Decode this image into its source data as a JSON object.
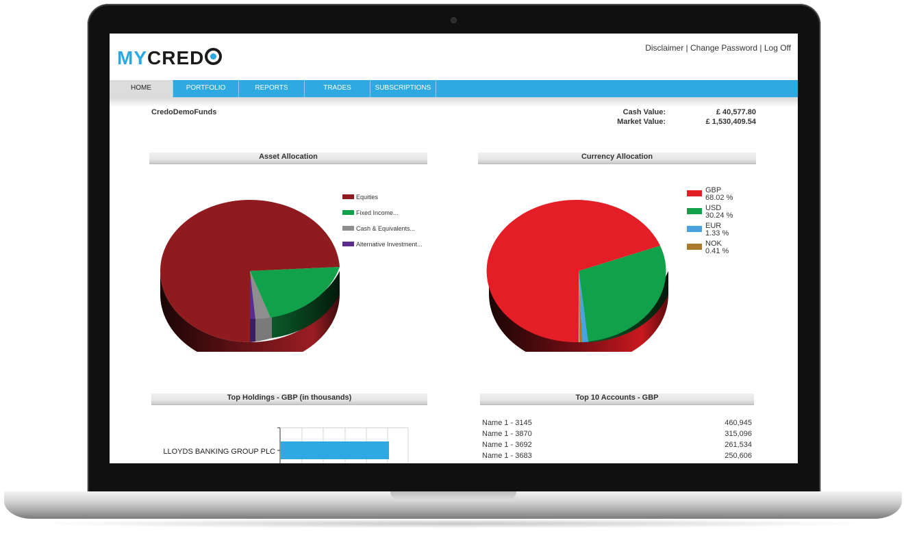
{
  "header": {
    "logo": {
      "part1": "MY",
      "part2": "CRED"
    },
    "links": "Disclaimer | Change Password | Log Off"
  },
  "nav": {
    "tabs": [
      {
        "label": "HOME",
        "active": true
      },
      {
        "label": "PORTFOLIO",
        "active": false
      },
      {
        "label": "REPORTS",
        "active": false
      },
      {
        "label": "TRADES",
        "active": false
      },
      {
        "label": "SUBSCRIPTIONS",
        "active": false
      }
    ]
  },
  "summary": {
    "account_name": "CredoDemoFunds",
    "cash_label": "Cash Value:",
    "cash_value": "£ 40,577.80",
    "market_label": "Market Value:",
    "market_value": "£ 1,530,409.54"
  },
  "asset_allocation": {
    "title": "Asset Allocation",
    "legend": [
      {
        "label": "Equities",
        "color": "#8f1b1f"
      },
      {
        "label": "Fixed Income...",
        "color": "#12a14b"
      },
      {
        "label": "Cash & Equivalents...",
        "color": "#8e8e8e"
      },
      {
        "label": "Alternative Investment...",
        "color": "#5b2c8a"
      }
    ]
  },
  "currency_allocation": {
    "title": "Currency Allocation",
    "legend": [
      {
        "code": "GBP",
        "pct": "68.02 %",
        "color": "#e31e26"
      },
      {
        "code": "USD",
        "pct": "30.24 %",
        "color": "#12a14b"
      },
      {
        "code": "EUR",
        "pct": "1.33 %",
        "color": "#4aa3dd"
      },
      {
        "code": "NOK",
        "pct": "0.41 %",
        "color": "#a97a2b"
      }
    ]
  },
  "top_holdings": {
    "title": "Top Holdings - GBP (in thousands)",
    "items": [
      {
        "label": "LLOYDS BANKING GROUP PLC",
        "color": "#2ea9e1"
      }
    ]
  },
  "top_accounts": {
    "title": "Top 10 Accounts - GBP",
    "rows": [
      {
        "name": "Name 1 - 3145",
        "value": "460,945"
      },
      {
        "name": "Name 1 - 3870",
        "value": "315,096"
      },
      {
        "name": "Name 1 - 3692",
        "value": "261,534"
      },
      {
        "name": "Name 1 - 3683",
        "value": "250,606"
      }
    ]
  }
}
